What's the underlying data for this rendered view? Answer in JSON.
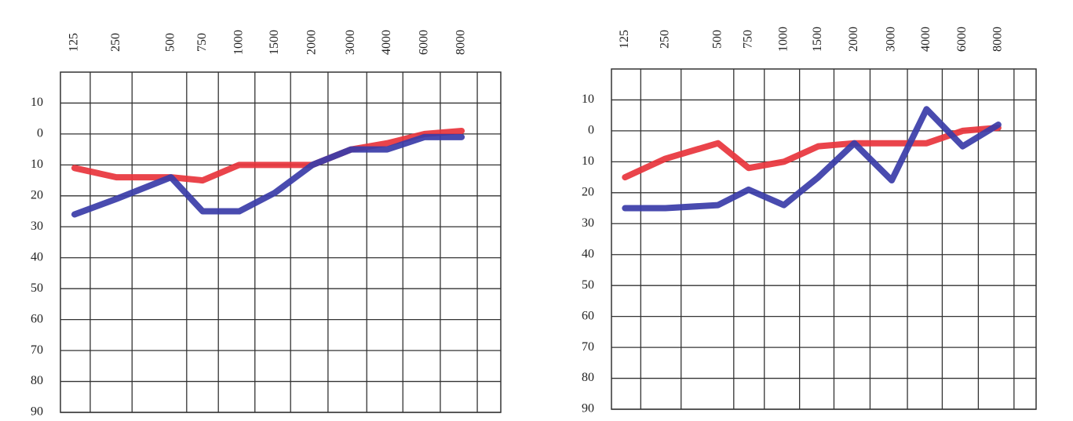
{
  "chart_data": [
    {
      "type": "line",
      "categories": [
        "125",
        "250",
        "500",
        "750",
        "1000",
        "1500",
        "2000",
        "3000",
        "4000",
        "6000",
        "8000"
      ],
      "series": [
        {
          "color": "#e8343c",
          "values": [
            11,
            14,
            14,
            15,
            10,
            10,
            10,
            5,
            3,
            0,
            -1
          ]
        },
        {
          "color": "#3a3ca8",
          "values": [
            26,
            21,
            14,
            25,
            25,
            19,
            10,
            5,
            5,
            1,
            1
          ]
        }
      ],
      "ylim": [
        -20,
        90
      ],
      "yticks": [
        {
          "value": -10,
          "label": "10"
        },
        0,
        10,
        20,
        30,
        40,
        50,
        60,
        70,
        80,
        90
      ],
      "y_inverted": true,
      "grid": true
    },
    {
      "type": "line",
      "categories": [
        "125",
        "250",
        "500",
        "750",
        "1000",
        "1500",
        "2000",
        "3000",
        "4000",
        "6000",
        "8000"
      ],
      "series": [
        {
          "color": "#e8343c",
          "values": [
            15,
            9,
            4,
            12,
            10,
            5,
            4,
            4,
            4,
            0,
            -1
          ]
        },
        {
          "color": "#3a3ca8",
          "values": [
            25,
            25,
            24,
            19,
            24,
            15,
            4,
            16,
            -7,
            5,
            -2
          ]
        }
      ],
      "ylim": [
        -20,
        90
      ],
      "yticks": [
        {
          "value": -10,
          "label": "10"
        },
        0,
        10,
        20,
        30,
        40,
        50,
        60,
        70,
        80,
        90
      ],
      "y_inverted": true,
      "grid": true
    }
  ]
}
